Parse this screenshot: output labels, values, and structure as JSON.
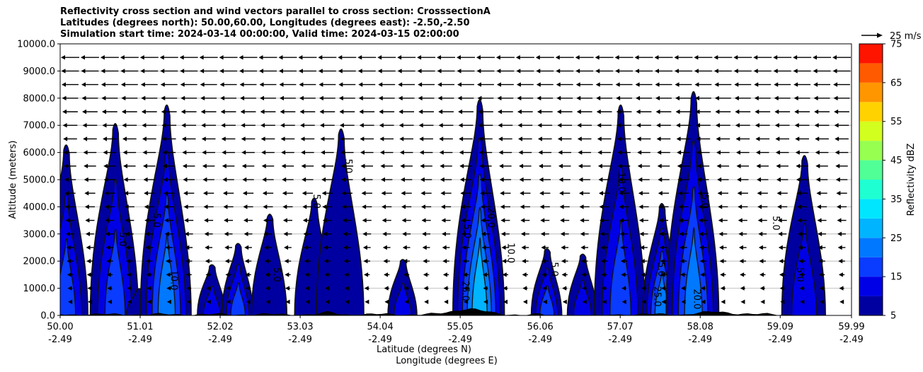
{
  "chart_data": {
    "type": "contour",
    "title_lines": [
      "Reflectivity cross section and wind vectors parallel to cross section: CrosssectionA",
      "Latitudes (degrees north): 50.00,60.00, Longitudes (degrees east): -2.50,-2.50",
      "Simulation start time: 2024-03-14 00:00:00, Valid time: 2024-03-15 02:00:00"
    ],
    "ylabel": "Altitude (meters)",
    "xlabel_lines": [
      "Latitude (degrees N)",
      "Longitude (degrees E)"
    ],
    "ylim": [
      0,
      10000
    ],
    "xlim": [
      50.0,
      59.99
    ],
    "y_ticks": [
      "0.0",
      "1000.0",
      "2000.0",
      "3000.0",
      "4000.0",
      "5000.0",
      "6000.0",
      "7000.0",
      "8000.0",
      "9000.0",
      "10000.0"
    ],
    "y_tick_values": [
      0,
      1000,
      2000,
      3000,
      4000,
      5000,
      6000,
      7000,
      8000,
      9000,
      10000
    ],
    "x_ticks": [
      {
        "lat": "50.00",
        "lon": "-2.49",
        "value": 50.0
      },
      {
        "lat": "51.01",
        "lon": "-2.49",
        "value": 51.01
      },
      {
        "lat": "52.02",
        "lon": "-2.49",
        "value": 52.02
      },
      {
        "lat": "53.03",
        "lon": "-2.49",
        "value": 53.03
      },
      {
        "lat": "54.04",
        "lon": "-2.49",
        "value": 54.04
      },
      {
        "lat": "55.05",
        "lon": "-2.49",
        "value": 55.05
      },
      {
        "lat": "56.06",
        "lon": "-2.49",
        "value": 56.06
      },
      {
        "lat": "57.07",
        "lon": "-2.49",
        "value": 57.07
      },
      {
        "lat": "58.08",
        "lon": "-2.49",
        "value": 58.08
      },
      {
        "lat": "59.09",
        "lon": "-2.49",
        "value": 59.09
      },
      {
        "lat": "59.99",
        "lon": "-2.49",
        "value": 59.99
      }
    ],
    "grid": "horizontal",
    "colorbar": {
      "label": "Reflectivity dBZ",
      "levels": [
        5,
        10,
        15,
        20,
        25,
        30,
        35,
        40,
        45,
        50,
        55,
        60,
        65,
        70,
        75
      ],
      "tick_labels": [
        "5",
        "15",
        "25",
        "35",
        "45",
        "55",
        "65",
        "75"
      ],
      "tick_values": [
        5,
        15,
        25,
        35,
        45,
        55,
        65,
        75
      ],
      "colors": [
        "#0000a0",
        "#0000e6",
        "#0a3cff",
        "#0078ff",
        "#00b4ff",
        "#00e6ff",
        "#1effd2",
        "#50ff96",
        "#96ff50",
        "#d2ff1e",
        "#ffd200",
        "#ff9600",
        "#ff5a00",
        "#ff1400",
        "#a00000"
      ]
    },
    "wind_key": {
      "label": "25 m/s",
      "speed": 25
    },
    "contour_labels": [
      "5.0",
      "10.0",
      "15.0",
      "20.0",
      "25.0",
      "30.0"
    ],
    "cells": [
      {
        "center": 50.08,
        "top": 6400,
        "max_dbz": 20
      },
      {
        "center": 50.7,
        "top": 7200,
        "max_dbz": 20
      },
      {
        "center": 51.0,
        "top": 1000,
        "max_dbz": 10
      },
      {
        "center": 51.35,
        "top": 7900,
        "max_dbz": 25
      },
      {
        "center": 51.92,
        "top": 1900,
        "max_dbz": 15
      },
      {
        "center": 52.25,
        "top": 2700,
        "max_dbz": 20
      },
      {
        "center": 52.65,
        "top": 3800,
        "max_dbz": 10
      },
      {
        "center": 53.21,
        "top": 4400,
        "max_dbz": 10
      },
      {
        "center": 53.55,
        "top": 7000,
        "max_dbz": 10
      },
      {
        "center": 54.33,
        "top": 2100,
        "max_dbz": 15
      },
      {
        "center": 55.3,
        "top": 8100,
        "max_dbz": 30
      },
      {
        "center": 56.15,
        "top": 2500,
        "max_dbz": 20
      },
      {
        "center": 56.6,
        "top": 2300,
        "max_dbz": 15
      },
      {
        "center": 57.08,
        "top": 7900,
        "max_dbz": 20
      },
      {
        "center": 57.6,
        "top": 4200,
        "max_dbz": 25
      },
      {
        "center": 58.0,
        "top": 8400,
        "max_dbz": 25
      },
      {
        "center": 59.4,
        "top": 6000,
        "max_dbz": 15
      }
    ]
  }
}
